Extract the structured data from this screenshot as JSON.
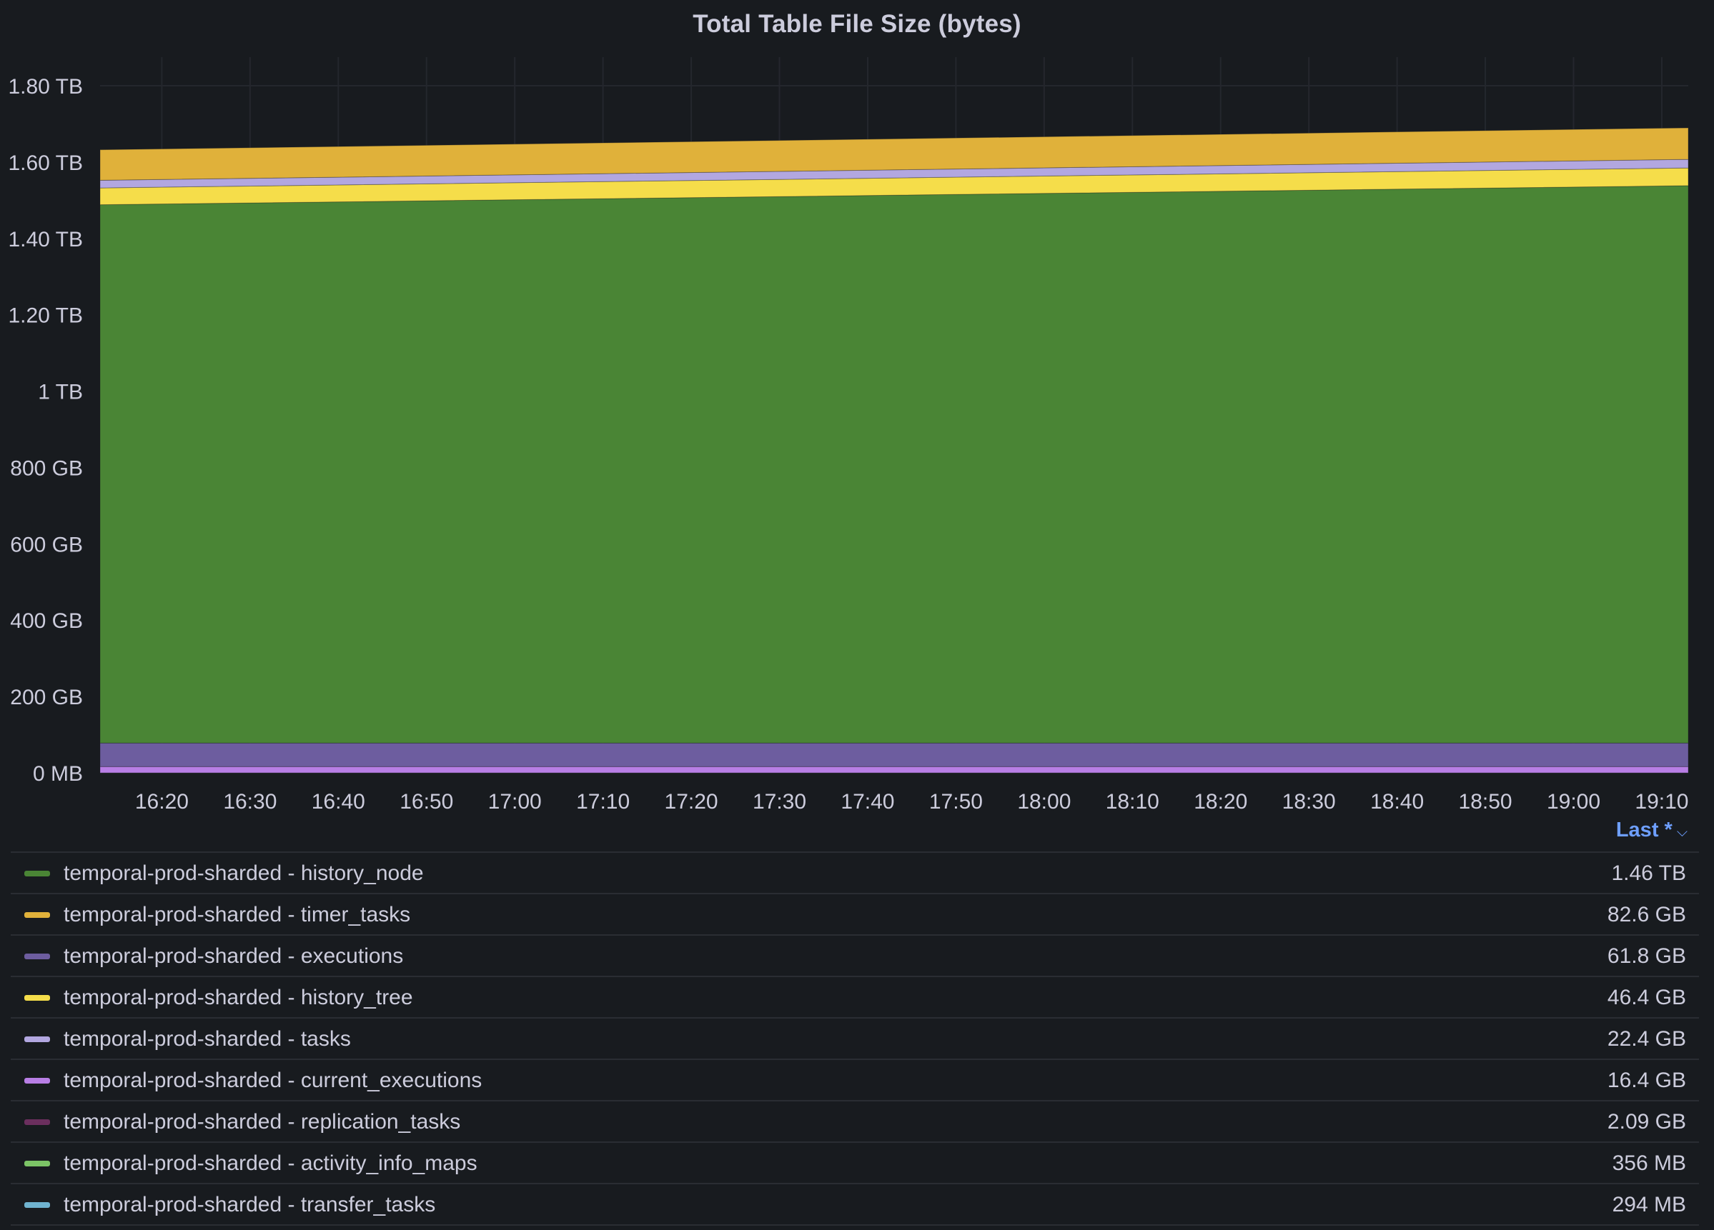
{
  "panel": {
    "title": "Total Table File Size (bytes)"
  },
  "legend": {
    "sort_label": "Last *",
    "sort_icon": "chevron-down-icon"
  },
  "chart_data": {
    "type": "area",
    "stacked": true,
    "title": "Total Table File Size (bytes)",
    "xlabel": "",
    "ylabel": "",
    "x": [
      "16:13",
      "19:13"
    ],
    "x_ticks": [
      "16:20",
      "16:30",
      "16:40",
      "16:50",
      "17:00",
      "17:10",
      "17:20",
      "17:30",
      "17:40",
      "17:50",
      "18:00",
      "18:10",
      "18:20",
      "18:30",
      "18:40",
      "18:50",
      "19:00",
      "19:10"
    ],
    "y_ticks": [
      "0 MB",
      "200 GB",
      "400 GB",
      "600 GB",
      "800 GB",
      "1 TB",
      "1.20 TB",
      "1.40 TB",
      "1.60 TB",
      "1.80 TB"
    ],
    "y_tick_values_gb": [
      0,
      200,
      400,
      600,
      800,
      1000,
      1200,
      1400,
      1600,
      1800
    ],
    "y_unit": "GB",
    "ylim": [
      0,
      1800
    ],
    "grid": true,
    "legend_placement": "bottom",
    "stack_order_bottom_to_top": [
      "temporal-prod-sharded - current_executions",
      "temporal-prod-sharded - executions",
      "temporal-prod-sharded - history_node",
      "temporal-prod-sharded - history_tree",
      "temporal-prod-sharded - tasks",
      "temporal-prod-sharded - timer_tasks"
    ],
    "series": [
      {
        "name": "temporal-prod-sharded - history_node",
        "color": "#4a8535",
        "values": [
          1410,
          1460
        ],
        "last": "1.46 TB"
      },
      {
        "name": "temporal-prod-sharded - timer_tasks",
        "color": "#e0b13a",
        "values": [
          80,
          82.6
        ],
        "last": "82.6 GB"
      },
      {
        "name": "temporal-prod-sharded - executions",
        "color": "#6d5d9f",
        "values": [
          61.8,
          61.8
        ],
        "last": "61.8 GB"
      },
      {
        "name": "temporal-prod-sharded - history_tree",
        "color": "#f5dd4a",
        "values": [
          44,
          46.4
        ],
        "last": "46.4 GB"
      },
      {
        "name": "temporal-prod-sharded - tasks",
        "color": "#b2a7e0",
        "values": [
          20,
          22.4
        ],
        "last": "22.4 GB"
      },
      {
        "name": "temporal-prod-sharded - current_executions",
        "color": "#b87ee5",
        "values": [
          16.4,
          16.4
        ],
        "last": "16.4 GB"
      },
      {
        "name": "temporal-prod-sharded - replication_tasks",
        "color": "#6b2f5e",
        "values": [
          2.09,
          2.09
        ],
        "last": "2.09 GB"
      },
      {
        "name": "temporal-prod-sharded - activity_info_maps",
        "color": "#7cc466",
        "values": [
          0.356,
          0.356
        ],
        "last": "356 MB"
      },
      {
        "name": "temporal-prod-sharded - transfer_tasks",
        "color": "#6fb3cf",
        "values": [
          0.294,
          0.294
        ],
        "last": "294 MB"
      }
    ]
  }
}
